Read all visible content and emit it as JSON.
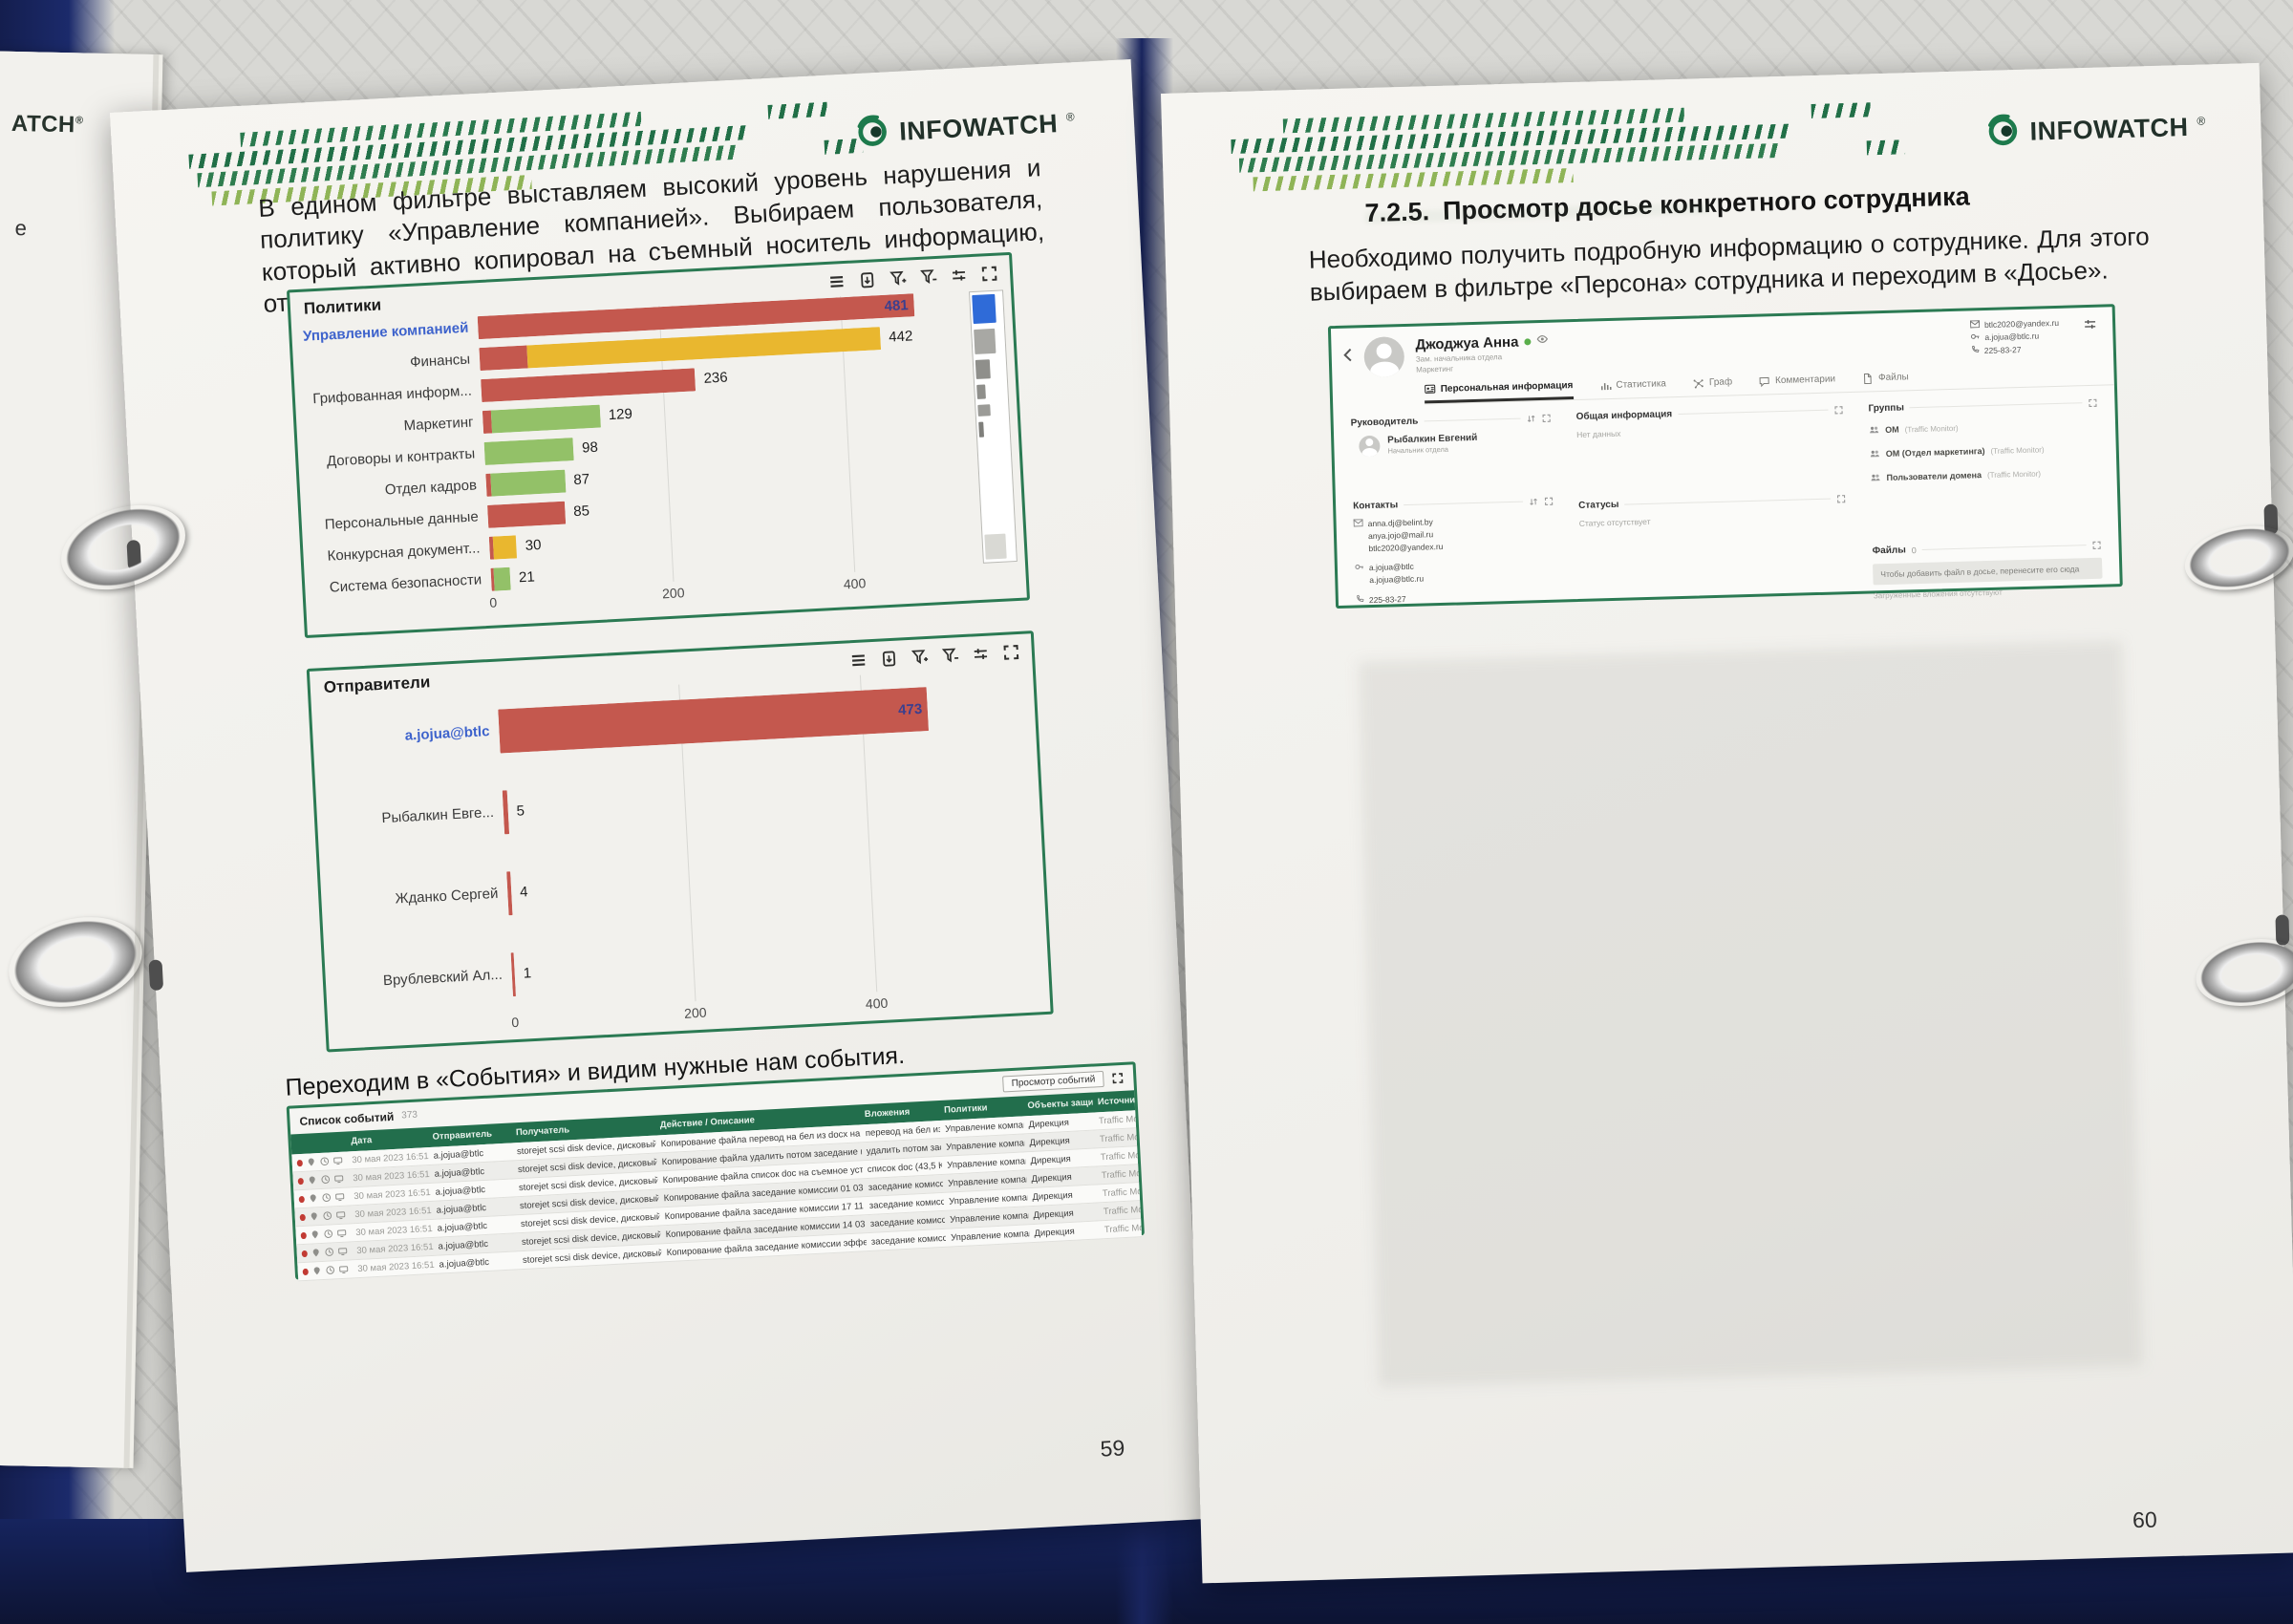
{
  "brand": {
    "name": "INFOWATCH",
    "mark": "®",
    "edge_fragment": "ATCH",
    "edge_letter": "е"
  },
  "left_page": {
    "intro": "В едином фильтре выставляем высокий уровень нарушения и политику «Управление компанией». Выбираем пользователя, который активно копировал на съемный носитель информацию, относящуюся к «Управление компанией»:",
    "events_caption": "Переходим в «События» и видим нужные нам события.",
    "page_number": "59"
  },
  "right_page": {
    "heading_number": "7.2.5.",
    "heading": "Просмотр досье конкретного сотрудника",
    "paragraph": "Необходимо получить подробную информацию о сотруднике. Для этого выбираем в фильтре «Персона» сотрудника и переходим в «Досье».",
    "page_number": "60"
  },
  "chart_toolbar_icons": [
    "menu-icon",
    "export-icon",
    "filter-add-icon",
    "filter-remove-icon",
    "settings-icon",
    "fullscreen-icon"
  ],
  "chart_data": [
    {
      "type": "bar",
      "orientation": "horizontal",
      "title": "Политики",
      "categories": [
        "Управление компанией",
        "Финансы",
        "Грифованная информ...",
        "Маркетинг",
        "Договоры и контракты",
        "Отдел кадров",
        "Персональные данные",
        "Конкурсная документ...",
        "Система безопасности"
      ],
      "values": [
        481,
        442,
        236,
        129,
        98,
        87,
        85,
        30,
        21
      ],
      "xticks": [
        0,
        200,
        400
      ],
      "xlim": [
        0,
        560
      ],
      "grid": "vertical",
      "legend": "off",
      "bars": [
        {
          "label": "Управление компанией",
          "value": 481,
          "selected": true,
          "value_inside": true,
          "segments": [
            {
              "color": "red",
              "frac": 1
            }
          ]
        },
        {
          "label": "Финансы",
          "value": 442,
          "segments": [
            {
              "color": "red",
              "frac": 0.12
            },
            {
              "color": "yellow",
              "frac": 0.88
            }
          ]
        },
        {
          "label": "Грифованная информ...",
          "value": 236,
          "segments": [
            {
              "color": "red",
              "frac": 1
            }
          ]
        },
        {
          "label": "Маркетинг",
          "value": 129,
          "segments": [
            {
              "color": "red",
              "frac": 0.07
            },
            {
              "color": "green",
              "frac": 0.93
            }
          ]
        },
        {
          "label": "Договоры и контракты",
          "value": 98,
          "segments": [
            {
              "color": "green",
              "frac": 1
            }
          ]
        },
        {
          "label": "Отдел кадров",
          "value": 87,
          "segments": [
            {
              "color": "red",
              "frac": 0.06
            },
            {
              "color": "green",
              "frac": 0.94
            }
          ]
        },
        {
          "label": "Персональные данные",
          "value": 85,
          "segments": [
            {
              "color": "red",
              "frac": 1
            }
          ]
        },
        {
          "label": "Конкурсная документ...",
          "value": 30,
          "segments": [
            {
              "color": "red",
              "frac": 0.15
            },
            {
              "color": "yellow",
              "frac": 0.85
            }
          ]
        },
        {
          "label": "Система безопасности",
          "value": 21,
          "segments": [
            {
              "color": "red",
              "frac": 0.15
            },
            {
              "color": "green",
              "frac": 0.85
            }
          ]
        }
      ]
    },
    {
      "type": "bar",
      "orientation": "horizontal",
      "title": "Отправители",
      "categories": [
        "a.jojua@btlc",
        "Рыбалкин Евге...",
        "Жданко Сергей",
        "Врублевский Ал..."
      ],
      "values": [
        473,
        5,
        4,
        1
      ],
      "xticks": [
        0,
        200,
        400
      ],
      "xlim": [
        0,
        560
      ],
      "grid": "vertical",
      "legend": "off",
      "bars": [
        {
          "label": "a.jojua@btlc",
          "value": 473,
          "selected": true,
          "value_inside": true,
          "segments": [
            {
              "color": "red",
              "frac": 1
            }
          ]
        },
        {
          "label": "Рыбалкин Евге...",
          "value": 5,
          "segments": [
            {
              "color": "red",
              "frac": 1
            }
          ]
        },
        {
          "label": "Жданко Сергей",
          "value": 4,
          "segments": [
            {
              "color": "red",
              "frac": 1
            }
          ]
        },
        {
          "label": "Врублевский Ал...",
          "value": 1,
          "segments": [
            {
              "color": "red",
              "frac": 1
            }
          ]
        }
      ]
    }
  ],
  "colors": {
    "red": "#c4584e",
    "yellow": "#e9b72f",
    "green": "#93c168",
    "selected_label": "#3e63cc",
    "value_inside": "#3b3f8e",
    "panel_border": "#2b7a53",
    "table_header_green": "#226e4c",
    "brand_green": "#1d7a4c",
    "status_green": "#5aae4b",
    "minimap_blue": "#2f6bd8"
  },
  "events_table": {
    "title": "Список событий",
    "count": "373",
    "view_button": "Просмотр событий",
    "columns": [
      "Дата",
      "Отправитель",
      "Получатель",
      "Действие / Описание",
      "Вложения",
      "Политики",
      "Объекты защиты",
      "Источник/ID в..."
    ],
    "rows": [
      {
        "date": "30 мая 2023 16:51...",
        "sender": "a.jojua@btlc",
        "recipient": "storejet scsi disk device, дисковый накопите...",
        "action": "Копирование файла перевод на бел из docx на съемное устройст...",
        "attachment": "перевод на бел из...",
        "policy": "Управление компанией",
        "object": "Дирекция",
        "source": "Traffic Monit..."
      },
      {
        "date": "30 мая 2023 16:51...",
        "sender": "a.jojua@btlc",
        "recipient": "storejet scsi disk device, дисковый накопите...",
        "action": "Копирование файла удалить потом заседание комиссии 23 02 20...",
        "attachment": "удалить потом зас...",
        "policy": "Управление компанией",
        "object": "Дирекция",
        "source": "Traffic Monit..."
      },
      {
        "date": "30 мая 2023 16:51...",
        "sender": "a.jojua@btlc",
        "recipient": "storejet scsi disk device, дисковый накопите...",
        "action": "Копирование файла список doc на съемное устройство StoreJet B...",
        "attachment": "список doc (43,5 КБ)",
        "policy": "Управление компанией",
        "object": "Дирекция",
        "source": "Traffic Monit..."
      },
      {
        "date": "30 мая 2023 16:51...",
        "sender": "a.jojua@btlc",
        "recipient": "storejet scsi disk device, дисковый накопите...",
        "action": "Копирование файла заседание комиссии 01 03 2021 doc на съем...",
        "attachment": "заседание комисс...",
        "policy": "Управление компанией",
        "object": "Дирекция",
        "source": "Traffic Monit..."
      },
      {
        "date": "30 мая 2023 16:51...",
        "sender": "a.jojua@btlc",
        "recipient": "storejet scsi disk device, дисковый накопите...",
        "action": "Копирование файла заседание комиссии 17 11 2020 doc на съем...",
        "attachment": "заседание комисс...",
        "policy": "Управление компанией",
        "object": "Дирекция",
        "source": "Traffic Monit..."
      },
      {
        "date": "30 мая 2023 16:51...",
        "sender": "a.jojua@btlc",
        "recipient": "storejet scsi disk device, дисковый накопите...",
        "action": "Копирование файла заседание комиссии 14 03 2022 doc на съем...",
        "attachment": "заседание комисс...",
        "policy": "Управление компанией",
        "object": "Дирекция",
        "source": "Traffic Monit..."
      },
      {
        "date": "30 мая 2023 16:51...",
        "sender": "a.jojua@btlc",
        "recipient": "storejet scsi disk device, дисковый накопите...",
        "action": "Копирование файла заседание комиссии эффективность док на с...",
        "attachment": "заседание комисс...",
        "policy": "Управление компанией",
        "object": "Дирекция",
        "source": "Traffic Monit..."
      }
    ]
  },
  "dossier": {
    "profile": {
      "name": "Джоджуа Анна",
      "title": "Зам. начальника отдела",
      "department": "Маркетинг",
      "header_contacts": {
        "email": "btlc2020@yandex.ru",
        "account": "a.jojua@btlc.ru",
        "phone": "225-83-27"
      },
      "tabs": [
        {
          "label": "Персональная информация",
          "icon": "id-card-icon",
          "active": true
        },
        {
          "label": "Статистика",
          "icon": "stats-icon",
          "active": false
        },
        {
          "label": "Граф",
          "icon": "graph-icon",
          "active": false
        },
        {
          "label": "Комментарии",
          "icon": "comment-icon",
          "active": false
        },
        {
          "label": "Файлы",
          "icon": "file-icon",
          "active": false
        }
      ],
      "sections": {
        "manager": {
          "title": "Руководитель",
          "name": "Рыбалкин Евгений",
          "role": "Начальник отдела"
        },
        "general": {
          "title": "Общая информация",
          "empty": "Нет данных"
        },
        "groups": {
          "title": "Группы",
          "items": [
            {
              "name": "ОМ",
              "source": "(Traffic Monitor)"
            },
            {
              "name": "ОМ (Отдел маркетинга)",
              "source": "(Traffic Monitor)"
            },
            {
              "name": "Пользователи домена",
              "source": "(Traffic Monitor)"
            }
          ]
        },
        "contacts": {
          "title": "Контакты",
          "emails": [
            "anna.dj@belint.by",
            "anya.jojo@mail.ru",
            "btlc2020@yandex.ru"
          ],
          "accounts": [
            "a.jojua@btlc",
            "a.jojua@btlc.ru"
          ],
          "phone": "225-83-27"
        },
        "statuses": {
          "title": "Статусы",
          "empty": "Статус отсутствует"
        },
        "files": {
          "title": "Файлы",
          "count": "0",
          "dropzone": "Чтобы добавить файл в досье, перенесите его сюда",
          "empty": "Загруженные вложения отсутствуют"
        }
      }
    }
  }
}
